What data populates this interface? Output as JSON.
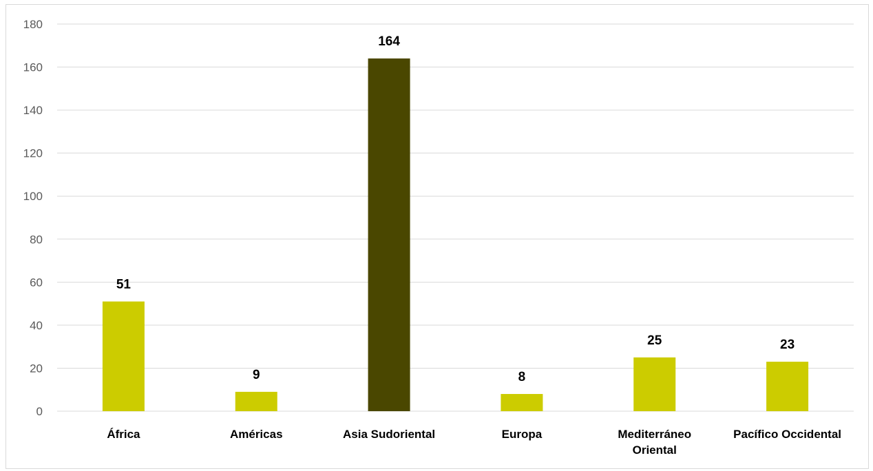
{
  "chart_data": {
    "type": "bar",
    "categories": [
      "África",
      "Américas",
      "Asia Sudoriental",
      "Europa",
      "Mediterráneo Oriental",
      "Pacífico Occidental"
    ],
    "category_lines": [
      [
        "África"
      ],
      [
        "Américas"
      ],
      [
        "Asia Sudoriental"
      ],
      [
        "Europa"
      ],
      [
        "Mediterráneo",
        "Oriental"
      ],
      [
        "Pacífico Occidental"
      ]
    ],
    "values": [
      51,
      9,
      164,
      8,
      25,
      23
    ],
    "data_labels": [
      "51",
      "9",
      "164",
      "8",
      "25",
      "23"
    ],
    "ylim": [
      0,
      180
    ],
    "yticks": [
      0,
      20,
      40,
      60,
      80,
      100,
      120,
      140,
      160,
      180
    ],
    "title": "",
    "xlabel": "",
    "ylabel": "",
    "grid": true,
    "legend": "none",
    "colors": {
      "bar": "#cccc00",
      "highlight_bar": "#4a4700",
      "gridline": "#d9d9d9",
      "axis_text": "#595959"
    },
    "highlight_category": "Asia Sudoriental"
  }
}
